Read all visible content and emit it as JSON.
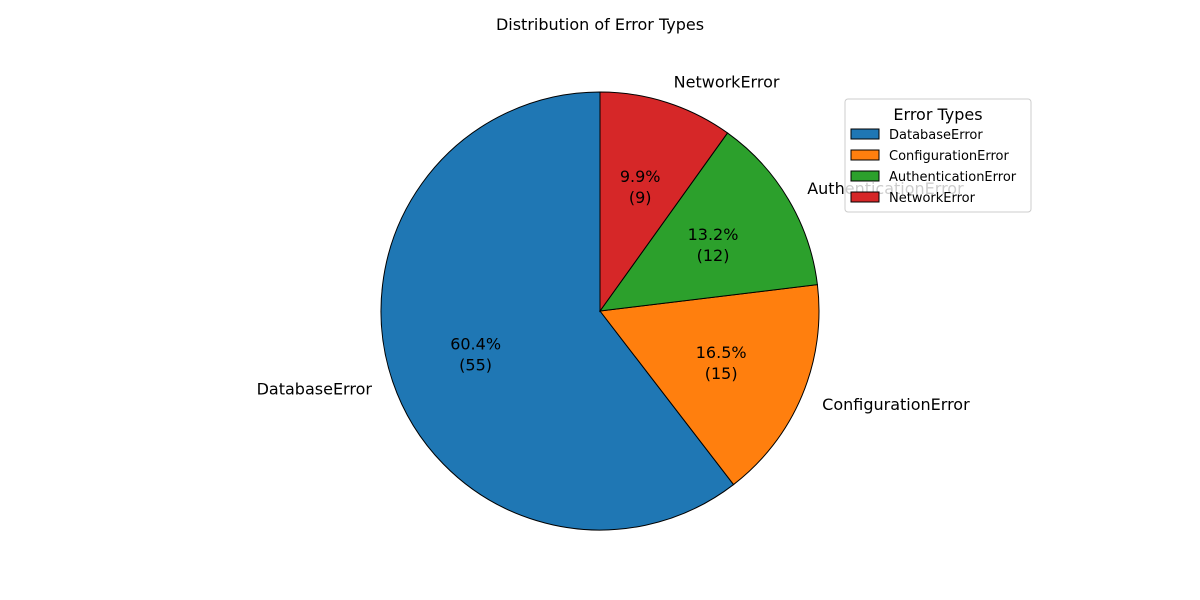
{
  "chart_data": {
    "type": "pie",
    "title": "Distribution of Error Types",
    "slices": [
      {
        "label": "DatabaseError",
        "value": 55,
        "percent": "60.4%",
        "color": "#1f77b4"
      },
      {
        "label": "ConfigurationError",
        "value": 15,
        "percent": "16.5%",
        "color": "#ff7f0e"
      },
      {
        "label": "AuthenticationError",
        "value": 12,
        "percent": "13.2%",
        "color": "#2ca02c"
      },
      {
        "label": "NetworkError",
        "value": 9,
        "percent": "9.9%",
        "color": "#d62728"
      }
    ],
    "start_angle_deg": 90,
    "direction": "counterclockwise",
    "edge_color": "#000000",
    "legend": {
      "title": "Error Types",
      "placement": "upper-right",
      "entries": [
        "DatabaseError",
        "ConfigurationError",
        "AuthenticationError",
        "NetworkError"
      ]
    }
  }
}
